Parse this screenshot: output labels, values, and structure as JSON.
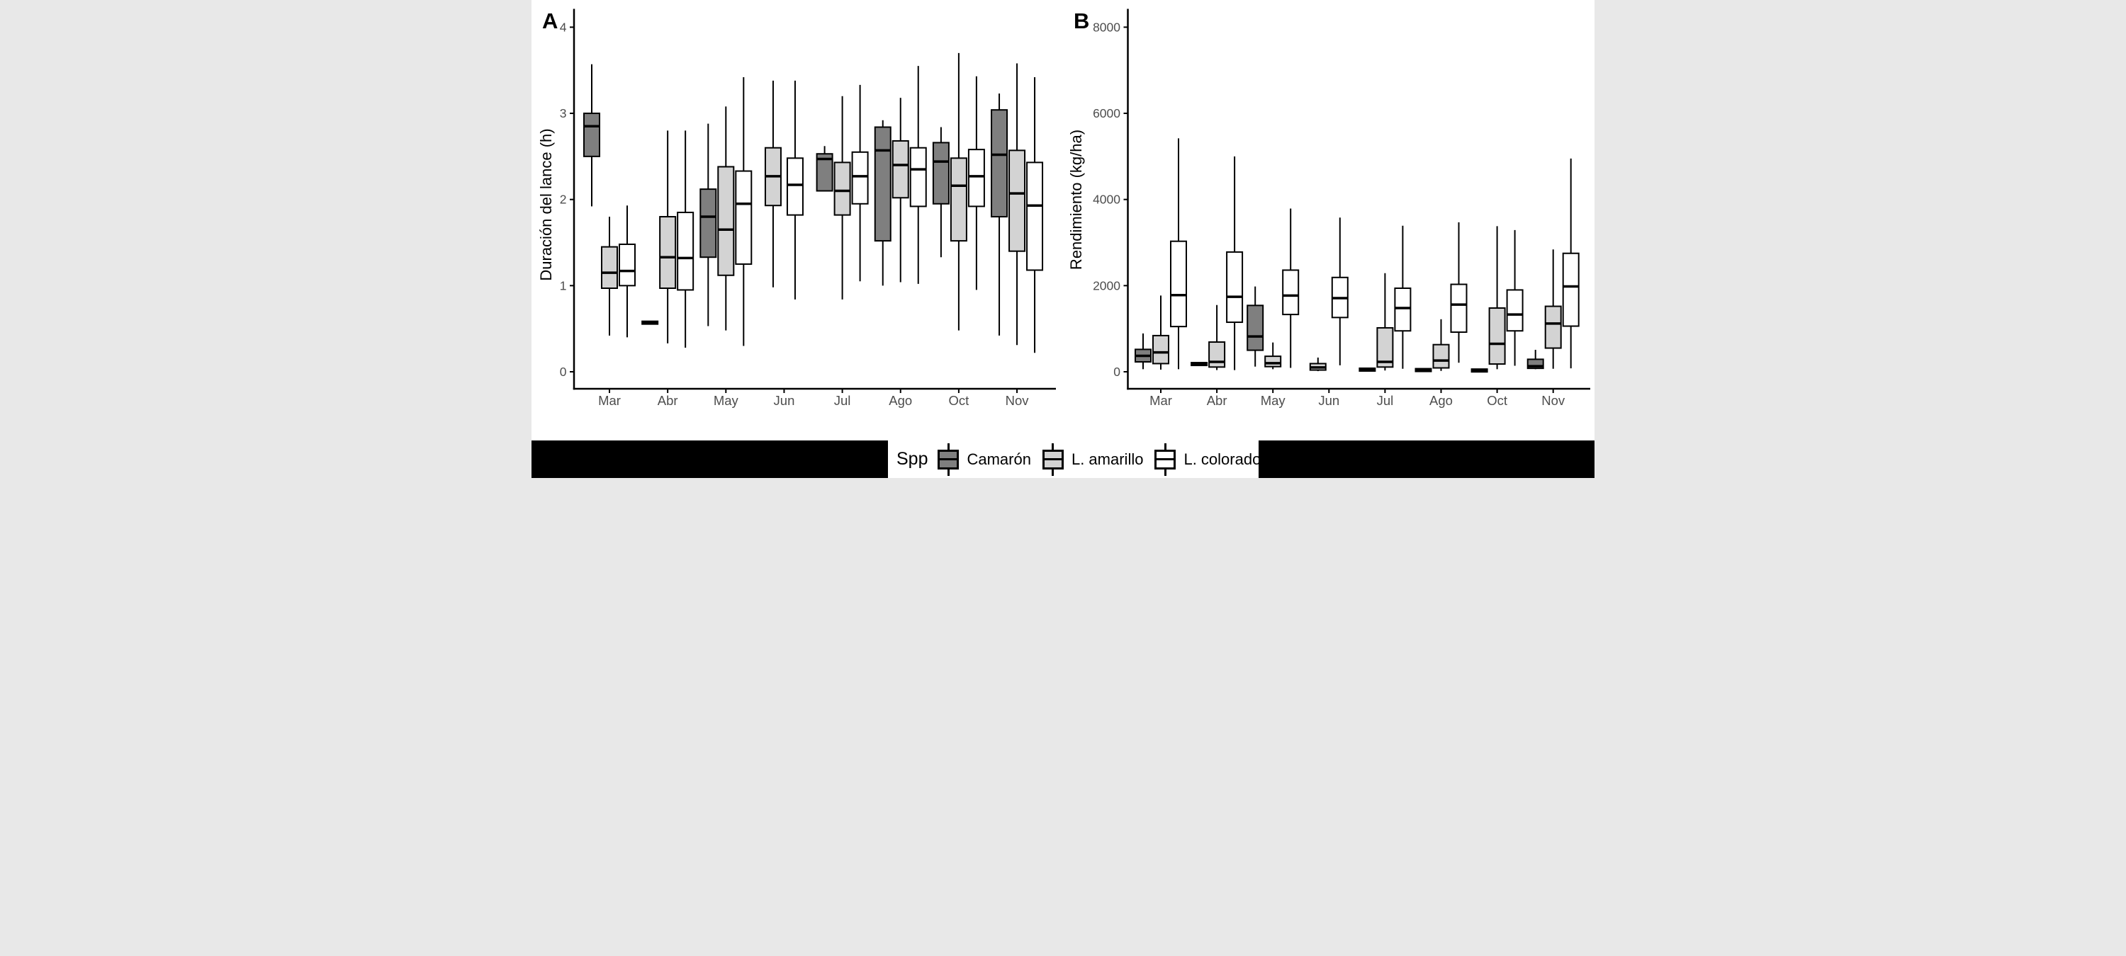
{
  "figure": {
    "panel_a": {
      "label": "A",
      "y_title": "Duración del lance (h)",
      "y_tick_labels": [
        "0",
        "1",
        "2",
        "3",
        "4"
      ],
      "x_tick_labels": [
        "Mar",
        "Abr",
        "May",
        "Jun",
        "Jul",
        "Ago",
        "Oct",
        "Nov"
      ]
    },
    "panel_b": {
      "label": "B",
      "y_title": "Rendimiento (kg/ha)",
      "y_tick_labels": [
        "0",
        "2000",
        "4000",
        "6000",
        "8000"
      ],
      "x_tick_labels": [
        "Mar",
        "Abr",
        "May",
        "Jun",
        "Jul",
        "Ago",
        "Oct",
        "Nov"
      ]
    },
    "legend": {
      "title": "Spp",
      "items": [
        {
          "label": "Camarón",
          "fill": "#7f7f7f"
        },
        {
          "label": "L. amarillo",
          "fill": "#d3d3d3"
        },
        {
          "label": "L. colorado",
          "fill": "#ffffff"
        }
      ]
    },
    "colors": {
      "axis_text": "#4d4d4d",
      "axis_line": "#000000",
      "background": "#ffffff",
      "letterbox": "#000000"
    }
  },
  "chart_data": [
    {
      "type": "boxplot",
      "panel": "A",
      "ylabel": "Duración del lance (h)",
      "xlabel": "",
      "ylim": [
        0,
        4.2
      ],
      "y_ticks": [
        0,
        1,
        2,
        3,
        4
      ],
      "grid": "off",
      "legend_position": "bottom",
      "categories": [
        "Mar",
        "Abr",
        "May",
        "Jun",
        "Jul",
        "Ago",
        "Oct",
        "Nov"
      ],
      "box_format": "[min, q1, median, q3, max]; null = species absent that month; min==max means single flat dash",
      "series": [
        {
          "name": "Camarón",
          "fill": "#7f7f7f",
          "boxes": [
            [
              1.92,
              2.5,
              2.85,
              3.0,
              3.57
            ],
            [
              0.57,
              0.57,
              0.57,
              0.57,
              0.57
            ],
            [
              0.53,
              1.33,
              1.8,
              2.12,
              2.88
            ],
            null,
            [
              2.1,
              2.1,
              2.47,
              2.53,
              2.62
            ],
            [
              1.0,
              1.52,
              2.57,
              2.84,
              2.92
            ],
            [
              1.33,
              1.95,
              2.44,
              2.66,
              2.84
            ],
            [
              0.42,
              1.8,
              2.52,
              3.04,
              3.23
            ]
          ]
        },
        {
          "name": "L. amarillo",
          "fill": "#d3d3d3",
          "boxes": [
            [
              0.42,
              0.97,
              1.15,
              1.45,
              1.8
            ],
            [
              0.33,
              0.97,
              1.33,
              1.8,
              2.8
            ],
            [
              0.48,
              1.12,
              1.65,
              2.38,
              3.08
            ],
            [
              0.98,
              1.93,
              2.27,
              2.6,
              3.38
            ],
            [
              0.84,
              1.82,
              2.1,
              2.43,
              3.2
            ],
            [
              1.04,
              2.02,
              2.4,
              2.68,
              3.18
            ],
            [
              0.48,
              1.52,
              2.16,
              2.48,
              3.7
            ],
            [
              0.31,
              1.4,
              2.07,
              2.57,
              3.58
            ]
          ]
        },
        {
          "name": "L. colorado",
          "fill": "#ffffff",
          "boxes": [
            [
              0.4,
              1.0,
              1.17,
              1.48,
              1.93
            ],
            [
              0.28,
              0.95,
              1.32,
              1.85,
              2.8
            ],
            [
              0.3,
              1.25,
              1.95,
              2.33,
              3.42
            ],
            [
              0.84,
              1.82,
              2.17,
              2.48,
              3.38
            ],
            [
              1.05,
              1.95,
              2.27,
              2.55,
              3.33
            ],
            [
              1.02,
              1.92,
              2.35,
              2.6,
              3.55
            ],
            [
              0.95,
              1.92,
              2.27,
              2.58,
              3.43
            ],
            [
              0.22,
              1.18,
              1.93,
              2.43,
              3.42
            ]
          ]
        }
      ]
    },
    {
      "type": "boxplot",
      "panel": "B",
      "ylabel": "Rendimiento (kg/ha)",
      "xlabel": "",
      "ylim": [
        0,
        8400
      ],
      "y_ticks": [
        0,
        2000,
        4000,
        6000,
        8000
      ],
      "grid": "off",
      "legend_position": "bottom",
      "categories": [
        "Mar",
        "Abr",
        "May",
        "Jun",
        "Jul",
        "Ago",
        "Oct",
        "Nov"
      ],
      "box_format": "[min, q1, median, q3, max]; null = species absent that month; min==max means single flat dash",
      "series": [
        {
          "name": "Camarón",
          "fill": "#7f7f7f",
          "boxes": [
            [
              60,
              230,
              370,
              520,
              890
            ],
            [
              180,
              180,
              180,
              180,
              180
            ],
            [
              120,
              500,
              820,
              1540,
              1980
            ],
            null,
            [
              50,
              50,
              50,
              50,
              50
            ],
            [
              40,
              40,
              40,
              40,
              40
            ],
            [
              30,
              30,
              30,
              30,
              30
            ],
            [
              60,
              80,
              130,
              290,
              510
            ]
          ]
        },
        {
          "name": "L. amarillo",
          "fill": "#d3d3d3",
          "boxes": [
            [
              50,
              190,
              450,
              840,
              1770
            ],
            [
              40,
              110,
              230,
              690,
              1550
            ],
            [
              60,
              120,
              200,
              360,
              680
            ],
            [
              15,
              40,
              100,
              190,
              330
            ],
            [
              30,
              110,
              230,
              1020,
              2290
            ],
            [
              20,
              90,
              260,
              630,
              1220
            ],
            [
              60,
              180,
              650,
              1480,
              3380
            ],
            [
              70,
              550,
              1120,
              1520,
              2840
            ]
          ]
        },
        {
          "name": "L. colorado",
          "fill": "#ffffff",
          "boxes": [
            [
              60,
              1050,
              1780,
              3030,
              5420
            ],
            [
              40,
              1150,
              1740,
              2780,
              5000
            ],
            [
              90,
              1330,
              1770,
              2360,
              3790
            ],
            [
              150,
              1260,
              1710,
              2190,
              3580
            ],
            [
              70,
              950,
              1480,
              1940,
              3390
            ],
            [
              210,
              920,
              1560,
              2030,
              3470
            ],
            [
              140,
              950,
              1330,
              1900,
              3290
            ],
            [
              80,
              1060,
              1980,
              2750,
              4950
            ]
          ]
        }
      ]
    }
  ]
}
